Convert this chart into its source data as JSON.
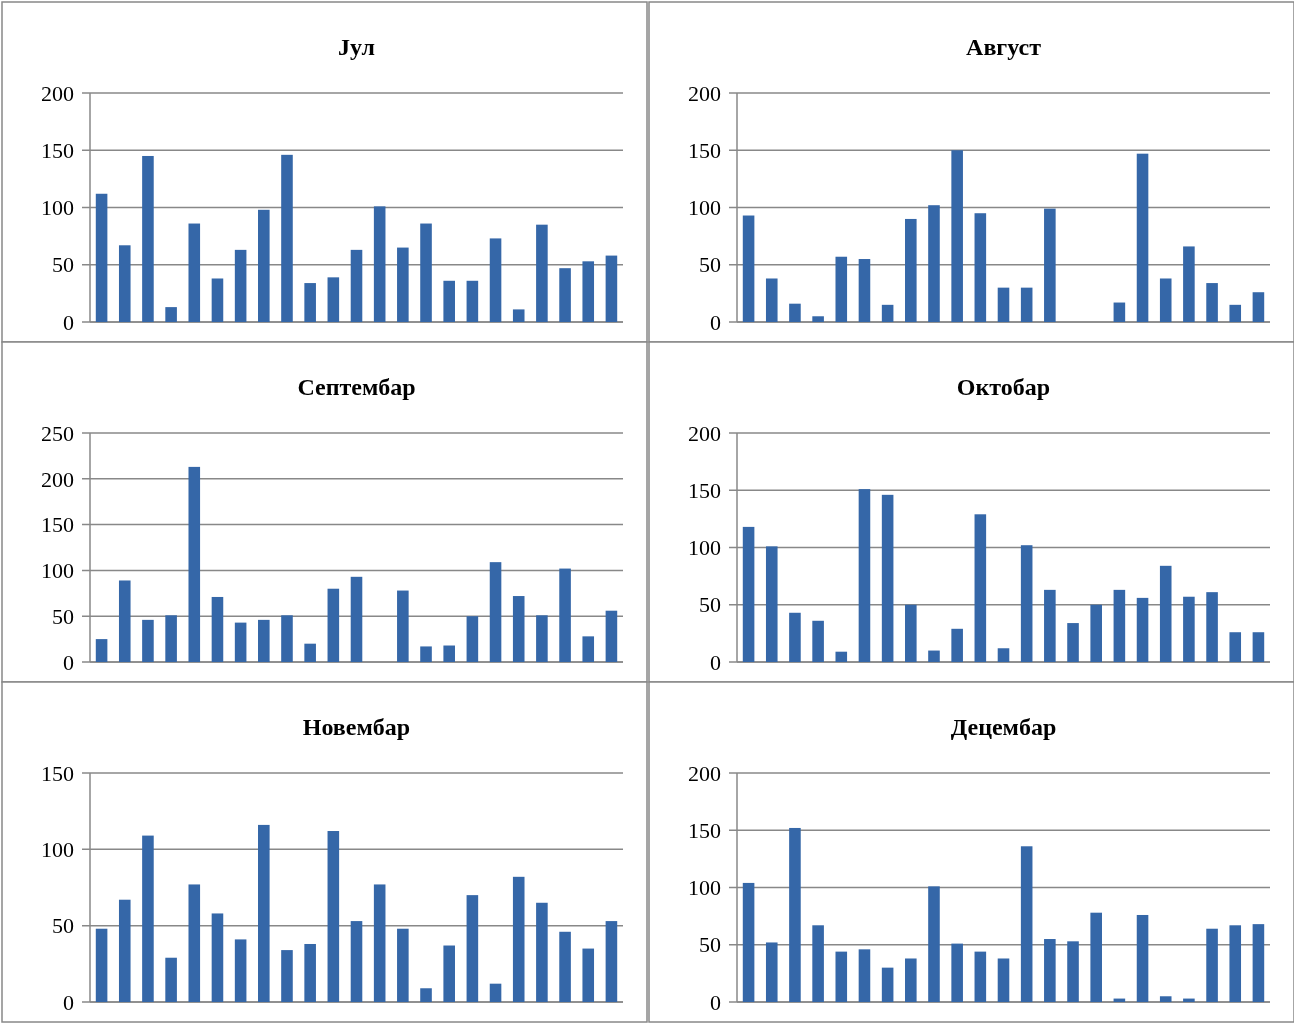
{
  "chart_data": [
    {
      "type": "bar",
      "title": "Јул",
      "categories": [
        null,
        null,
        null,
        null,
        null,
        null,
        null,
        null,
        null,
        null,
        null,
        null,
        null,
        null,
        null,
        null,
        null,
        null,
        null,
        null,
        null,
        null,
        null
      ],
      "values": [
        112,
        67,
        145,
        13,
        86,
        38,
        63,
        98,
        146,
        34,
        39,
        63,
        101,
        65,
        86,
        36,
        36,
        73,
        11,
        85,
        47,
        53,
        58
      ],
      "color": "#3567a8",
      "ylim": [
        0,
        200
      ],
      "yticks": [
        0,
        50,
        100,
        150,
        200
      ],
      "grid": "y",
      "tick_labels": "y"
    },
    {
      "type": "bar",
      "title": "Август",
      "categories": [
        null,
        null,
        null,
        null,
        null,
        null,
        null,
        null,
        null,
        null,
        null,
        null,
        null,
        null,
        null,
        null,
        null,
        null,
        null,
        null,
        null,
        null,
        null
      ],
      "values": [
        93,
        38,
        16,
        5,
        57,
        55,
        15,
        90,
        102,
        150,
        95,
        30,
        30,
        99,
        null,
        null,
        17,
        147,
        38,
        66,
        34,
        15,
        26
      ],
      "color": "#3567a8",
      "ylim": [
        0,
        200
      ],
      "yticks": [
        0,
        50,
        100,
        150,
        200
      ],
      "grid": "y",
      "tick_labels": "y"
    },
    {
      "type": "bar",
      "title": "Септембар",
      "categories": [
        null,
        null,
        null,
        null,
        null,
        null,
        null,
        null,
        null,
        null,
        null,
        null,
        null,
        null,
        null,
        null,
        null,
        null,
        null,
        null,
        null,
        null,
        null
      ],
      "values": [
        25,
        89,
        46,
        51,
        213,
        71,
        43,
        46,
        51,
        20,
        80,
        93,
        null,
        78,
        17,
        18,
        50,
        109,
        72,
        51,
        102,
        28,
        56
      ],
      "color": "#3567a8",
      "ylim": [
        0,
        250
      ],
      "yticks": [
        0,
        50,
        100,
        150,
        200,
        250
      ],
      "grid": "y",
      "tick_labels": "y"
    },
    {
      "type": "bar",
      "title": "Октобар",
      "categories": [
        null,
        null,
        null,
        null,
        null,
        null,
        null,
        null,
        null,
        null,
        null,
        null,
        null,
        null,
        null,
        null,
        null,
        null,
        null,
        null,
        null,
        null,
        null
      ],
      "values": [
        118,
        101,
        43,
        36,
        9,
        151,
        146,
        50,
        10,
        29,
        129,
        12,
        102,
        63,
        34,
        50,
        63,
        56,
        84,
        57,
        61,
        26,
        26
      ],
      "color": "#3567a8",
      "ylim": [
        0,
        200
      ],
      "yticks": [
        0,
        50,
        100,
        150,
        200
      ],
      "grid": "y",
      "tick_labels": "y"
    },
    {
      "type": "bar",
      "title": "Новембар",
      "categories": [
        null,
        null,
        null,
        null,
        null,
        null,
        null,
        null,
        null,
        null,
        null,
        null,
        null,
        null,
        null,
        null,
        null,
        null,
        null,
        null,
        null,
        null,
        null
      ],
      "values": [
        48,
        67,
        109,
        29,
        77,
        58,
        41,
        116,
        34,
        38,
        112,
        53,
        77,
        48,
        9,
        37,
        70,
        12,
        82,
        65,
        46,
        35,
        53
      ],
      "color": "#3567a8",
      "ylim": [
        0,
        150
      ],
      "yticks": [
        0,
        50,
        100,
        150
      ],
      "grid": "y",
      "tick_labels": "y"
    },
    {
      "type": "bar",
      "title": "Децембар",
      "categories": [
        null,
        null,
        null,
        null,
        null,
        null,
        null,
        null,
        null,
        null,
        null,
        null,
        null,
        null,
        null,
        null,
        null,
        null,
        null,
        null,
        null,
        null,
        null
      ],
      "values": [
        104,
        52,
        152,
        67,
        44,
        46,
        30,
        38,
        101,
        51,
        44,
        38,
        136,
        55,
        53,
        78,
        3,
        76,
        5,
        3,
        64,
        67,
        68
      ],
      "color": "#3567a8",
      "ylim": [
        0,
        200
      ],
      "yticks": [
        0,
        50,
        100,
        150,
        200
      ],
      "grid": "y",
      "tick_labels": "y"
    }
  ]
}
